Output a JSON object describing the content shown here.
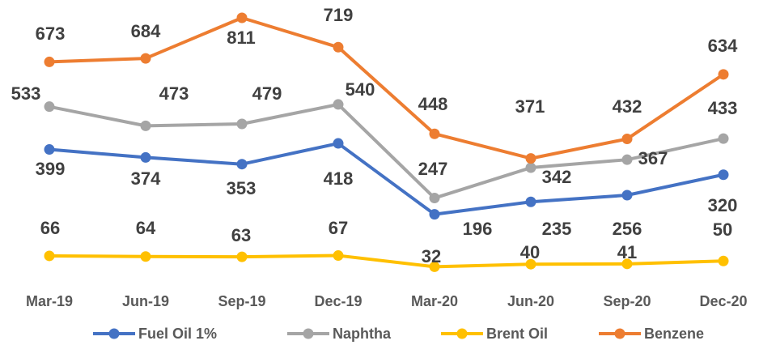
{
  "chart_data": {
    "type": "line",
    "categories": [
      "Mar-19",
      "Jun-19",
      "Sep-19",
      "Dec-19",
      "Mar-20",
      "Jun-20",
      "Sep-20",
      "Dec-20"
    ],
    "series": [
      {
        "name": "Fuel Oil 1%",
        "color": "#4472c4",
        "values": [
          399,
          374,
          353,
          418,
          196,
          235,
          256,
          320
        ]
      },
      {
        "name": "Naphtha",
        "color": "#a5a5a5",
        "values": [
          533,
          473,
          479,
          540,
          247,
          342,
          367,
          433
        ]
      },
      {
        "name": "Brent Oil",
        "color": "#ffc000",
        "values": [
          66,
          64,
          63,
          67,
          32,
          40,
          41,
          50
        ]
      },
      {
        "name": "Benzene",
        "color": "#ed7d31",
        "values": [
          673,
          684,
          811,
          719,
          448,
          371,
          432,
          634
        ]
      }
    ],
    "legend": "bottom"
  }
}
